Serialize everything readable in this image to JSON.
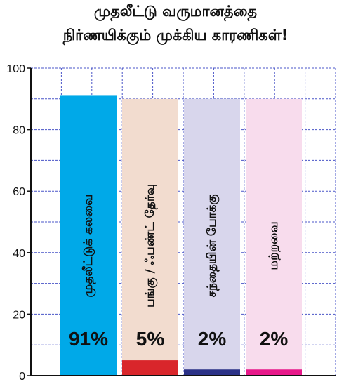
{
  "header": {
    "title_line1": "முதலீட்டு வருமானத்தை",
    "title_line2": "நிர்ணயிக்கும் முக்கிய காரணிகள்!"
  },
  "chart_data": {
    "type": "bar",
    "orientation": "vertical",
    "categories": [
      "முதலீட்டுக் கலவை",
      "பங்கு / ஃபண்ட் தேர்வு",
      "சந்தையின் போக்கு",
      "மற்றவை"
    ],
    "values": [
      91,
      5,
      2,
      2
    ],
    "value_labels": [
      "91%",
      "5%",
      "2%",
      "2%"
    ],
    "ylim": [
      0,
      100
    ],
    "yticks": [
      "0",
      "20",
      "40",
      "60",
      "80",
      "100"
    ],
    "grid": "dashed-blue",
    "colors": {
      "bars": [
        "#00a9e8",
        "#d9262b",
        "#2b3287",
        "#e7198a"
      ],
      "backgrounds": [
        "#00a9e8",
        "#f2dccf",
        "#d8d6ec",
        "#f8dced"
      ],
      "grid": "#4a56c8",
      "axis": "#111111"
    }
  }
}
